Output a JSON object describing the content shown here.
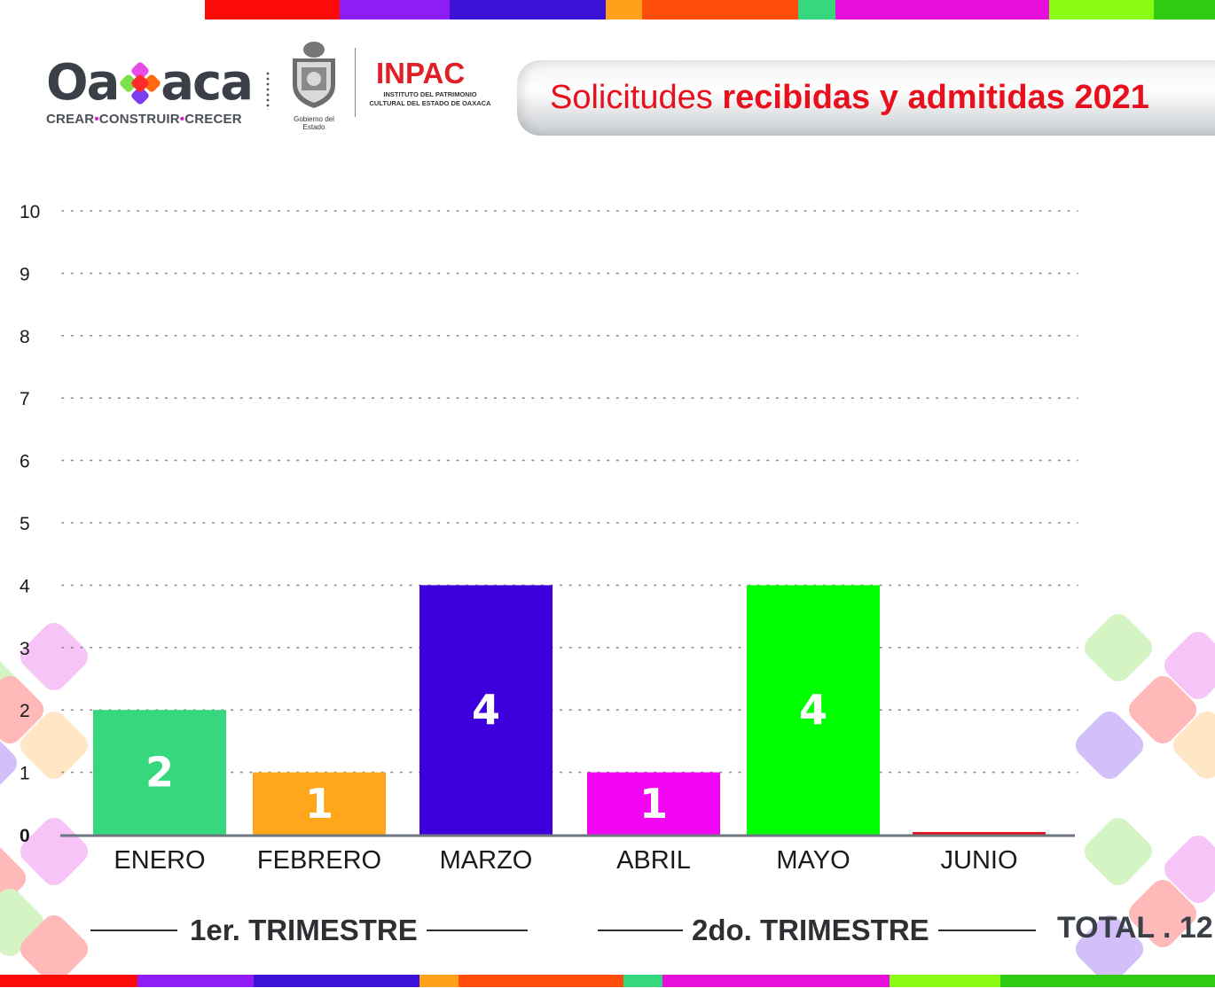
{
  "header": {
    "logo_word_left": "Oa",
    "logo_word_right": "aca",
    "logo_tag": [
      "CREAR",
      "CONSTRUIR",
      "CRECER"
    ],
    "seal_caption": "Gobierno del Estado",
    "inpac_name": "INPAC",
    "inpac_sub_1": "INSTITUTO DEL PATRIMONIO",
    "inpac_sub_2": "CULTURAL DEL ESTADO DE OAXACA",
    "title_light": "Solicitudes ",
    "title_bold": "recibidas y admitidas 2021"
  },
  "stripe_colors_top": [
    "#fb0a0a",
    "#8f1cf5",
    "#3d12d8",
    "#ffa11a",
    "#fe4d0c",
    "#35d87d",
    "#e60fdb",
    "#89fb15",
    "#2ecb12"
  ],
  "stripe_colors_bottom": [
    "#fb0a0a",
    "#8f1cf5",
    "#3d12d8",
    "#ffa11a",
    "#fe4d0c",
    "#35d87d",
    "#e60fdb",
    "#89fb15",
    "#2ecb12"
  ],
  "chart_data": {
    "type": "bar",
    "title": "Solicitudes recibidas y admitidas 2021",
    "categories": [
      "ENERO",
      "FEBRERO",
      "MARZO",
      "ABRIL",
      "MAYO",
      "JUNIO"
    ],
    "values": [
      2,
      1,
      4,
      1,
      4,
      0
    ],
    "bar_labels": [
      "2",
      "1",
      "4",
      "1",
      "4",
      ""
    ],
    "colors": [
      "#35d87d",
      "#ffa71a",
      "#3d00dd",
      "#f205f2",
      "#00ff00",
      "#e8101c"
    ],
    "ylim": [
      0,
      10
    ],
    "yticks": [
      "0",
      "1",
      "2",
      "3",
      "4",
      "5",
      "6",
      "7",
      "8",
      "9",
      "10"
    ],
    "grid": true,
    "xlabel": "",
    "ylabel": ""
  },
  "groups": {
    "first": "1er. TRIMESTRE",
    "second": "2do. TRIMESTRE",
    "total": "TOTAL . 12"
  }
}
